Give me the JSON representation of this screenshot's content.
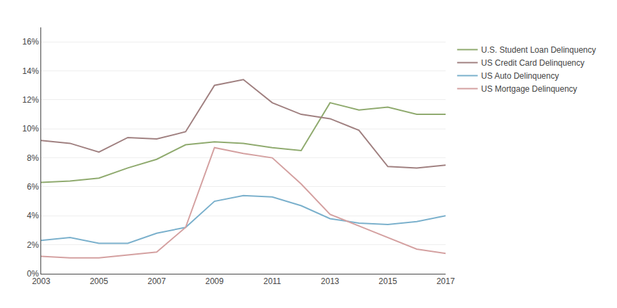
{
  "chart_data": {
    "type": "line",
    "x": [
      2003,
      2004,
      2005,
      2006,
      2007,
      2008,
      2009,
      2010,
      2011,
      2012,
      2013,
      2014,
      2015,
      2016,
      2017
    ],
    "series": [
      {
        "name": "U.S. Student Loan Delinquency",
        "color": "#8faa6e",
        "values": [
          6.3,
          6.4,
          6.6,
          7.3,
          7.9,
          8.9,
          9.1,
          9.0,
          8.7,
          8.5,
          11.8,
          11.3,
          11.5,
          11.0,
          11.0
        ]
      },
      {
        "name": "US Credit Card Delinquency",
        "color": "#a08080",
        "values": [
          9.2,
          9.0,
          8.4,
          9.4,
          9.3,
          9.8,
          13.0,
          13.4,
          11.8,
          11.0,
          10.7,
          9.9,
          7.4,
          7.3,
          7.5
        ]
      },
      {
        "name": "US Auto Delinquency",
        "color": "#7ab0cc",
        "values": [
          2.3,
          2.5,
          2.1,
          2.1,
          2.8,
          3.2,
          5.0,
          5.4,
          5.3,
          4.7,
          3.8,
          3.5,
          3.4,
          3.6,
          4.0
        ]
      },
      {
        "name": "US Mortgage Delinquency",
        "color": "#d4a0a0",
        "values": [
          1.2,
          1.1,
          1.1,
          1.3,
          1.5,
          3.2,
          8.7,
          8.3,
          8.0,
          6.2,
          4.1,
          3.3,
          2.5,
          1.7,
          1.4
        ]
      }
    ],
    "xlim": [
      2003,
      2017
    ],
    "xticks": [
      2003,
      2005,
      2007,
      2009,
      2011,
      2013,
      2015,
      2017
    ],
    "ylim": [
      0,
      17
    ],
    "yticks": [
      {
        "value": 0,
        "label": "0%"
      },
      {
        "value": 2,
        "label": "2%"
      },
      {
        "value": 4,
        "label": "4%"
      },
      {
        "value": 6,
        "label": "6%"
      },
      {
        "value": 8,
        "label": "8%"
      },
      {
        "value": 10,
        "label": "10%"
      },
      {
        "value": 12,
        "label": "12%"
      },
      {
        "value": 14,
        "label": "14%"
      },
      {
        "value": 16,
        "label": "16%"
      }
    ],
    "grid": "y",
    "legend": "right"
  }
}
